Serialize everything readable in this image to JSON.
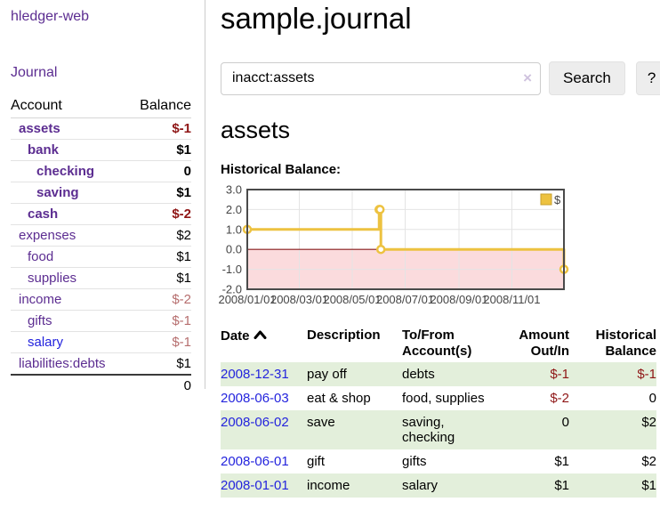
{
  "colors": {
    "accent_purple": "#5c2d91",
    "link_blue": "#2222dd",
    "neg_strong": "#8f1616",
    "neg_pale": "#b66e6e",
    "row_green": "#e3efdb",
    "chart_line": "#edc240",
    "chart_neg_fill": "#fbdbdd",
    "chart_zero_line": "#8b1a1a",
    "chart_grid": "#e4e4e4",
    "chart_border": "#4a4a4a"
  },
  "sidebar": {
    "brand": "hledger-web",
    "nav_journal": "Journal",
    "accounts": {
      "header_account": "Account",
      "header_balance": "Balance",
      "rows": [
        {
          "account": "assets",
          "balance": "$-1",
          "depth": 1,
          "emph": true,
          "balance_tone": "neg-strong"
        },
        {
          "account": "bank",
          "balance": "$1",
          "depth": 2,
          "emph": true
        },
        {
          "account": "checking",
          "balance": "0",
          "depth": 3,
          "emph": true
        },
        {
          "account": "saving",
          "balance": "$1",
          "depth": 3,
          "emph": true
        },
        {
          "account": "cash",
          "balance": "$-2",
          "depth": 2,
          "emph": true,
          "balance_tone": "neg-strong"
        },
        {
          "account": "expenses",
          "balance": "$2",
          "depth": 1
        },
        {
          "account": "food",
          "balance": "$1",
          "depth": 2
        },
        {
          "account": "supplies",
          "balance": "$1",
          "depth": 2
        },
        {
          "account": "income",
          "balance": "$-2",
          "depth": 1,
          "balance_tone": "neg-pale"
        },
        {
          "account": "gifts",
          "balance": "$-1",
          "depth": 2,
          "balance_tone": "neg-pale"
        },
        {
          "account": "salary",
          "balance": "$-1",
          "depth": 2,
          "balance_tone": "neg-pale",
          "link_tone": "blue"
        },
        {
          "account": "liabilities:debts",
          "balance": "$1",
          "depth": 1
        }
      ],
      "total": "0"
    }
  },
  "main": {
    "title": "sample.journal",
    "search": {
      "value": "inacct:assets",
      "clear": "×",
      "submit": "Search",
      "help": "?"
    },
    "account_title": "assets",
    "chart_heading": "Historical Balance:"
  },
  "chart_data": {
    "type": "line",
    "step": true,
    "title": "Historical Balance:",
    "xlim": [
      "2008-01-01",
      "2008-12-31"
    ],
    "ylim": [
      -2,
      3
    ],
    "yticks": [
      {
        "v": 3,
        "label": "3.0"
      },
      {
        "v": 2,
        "label": "2.0"
      },
      {
        "v": 1,
        "label": "1.0"
      },
      {
        "v": 0,
        "label": "0.0"
      },
      {
        "v": -1,
        "label": "-1.0"
      },
      {
        "v": -2,
        "label": "-2.0"
      }
    ],
    "xticks": [
      {
        "date": "2008-01-01",
        "label": "2008/01/01"
      },
      {
        "date": "2008-03-01",
        "label": "2008/03/01"
      },
      {
        "date": "2008-05-01",
        "label": "2008/05/01"
      },
      {
        "date": "2008-07-01",
        "label": "2008/07/01"
      },
      {
        "date": "2008-09-01",
        "label": "2008/09/01"
      },
      {
        "date": "2008-11-01",
        "label": "2008/11/01"
      }
    ],
    "series": [
      {
        "name": "$",
        "color": "#edc240",
        "points": [
          [
            "2008-01-01",
            1
          ],
          [
            "2008-06-01",
            2
          ],
          [
            "2008-06-02",
            2
          ],
          [
            "2008-06-03",
            0
          ],
          [
            "2008-12-31",
            -1
          ]
        ]
      }
    ],
    "zero_line": true,
    "negative_region_shaded": true,
    "grid": true,
    "legend": {
      "label": "$",
      "position": "top-right"
    }
  },
  "register": {
    "headers": {
      "date": "Date",
      "description": "Description",
      "accounts": "To/From Account(s)",
      "amount": "Amount Out/In",
      "balance": "Historical Balance"
    },
    "sort": {
      "column": "date",
      "direction": "ascending"
    },
    "rows": [
      {
        "date": "2008-12-31",
        "description": "pay off",
        "accounts": "debts",
        "amount": "$-1",
        "balance": "$-1",
        "amount_tone": "neg-strong",
        "balance_tone": "neg-strong"
      },
      {
        "date": "2008-06-03",
        "description": "eat & shop",
        "accounts": "food, supplies",
        "amount": "$-2",
        "balance": "0",
        "amount_tone": "neg-strong"
      },
      {
        "date": "2008-06-02",
        "description": "save",
        "accounts": "saving, checking",
        "amount": "0",
        "balance": "$2"
      },
      {
        "date": "2008-06-01",
        "description": "gift",
        "accounts": "gifts",
        "amount": "$1",
        "balance": "$2"
      },
      {
        "date": "2008-01-01",
        "description": "income",
        "accounts": "salary",
        "amount": "$1",
        "balance": "$1"
      }
    ]
  }
}
